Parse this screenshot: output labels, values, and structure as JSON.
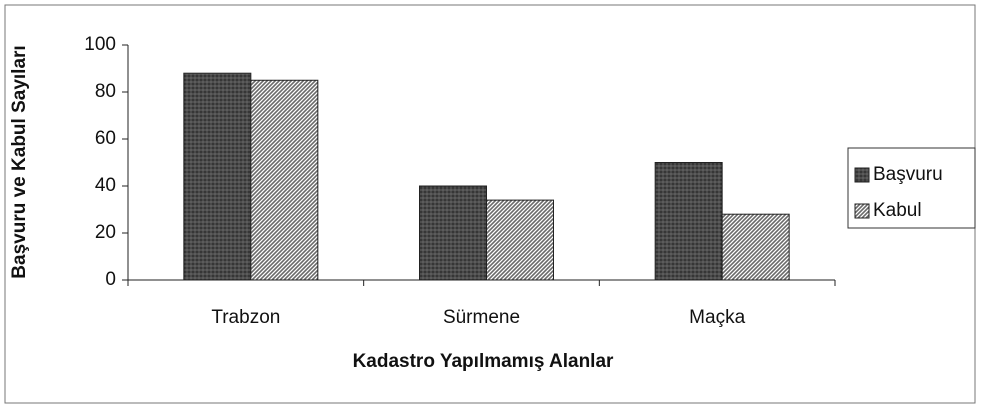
{
  "chart_data": {
    "type": "bar",
    "xlabel": "Kadastro Yapılmamış Alanlar",
    "ylabel": "Başvuru ve Kabul Sayıları",
    "categories": [
      "Trabzon",
      "Sürmene",
      "Maçka"
    ],
    "series": [
      {
        "name": "Başvuru",
        "color": "#4a4a4a",
        "values": [
          88,
          40,
          50
        ]
      },
      {
        "name": "Kabul",
        "color": "#6a6a6a",
        "values": [
          85,
          34,
          28
        ]
      }
    ],
    "ylim": [
      0,
      100
    ],
    "yticks": [
      0,
      20,
      40,
      60,
      80,
      100
    ],
    "legend": "right"
  }
}
